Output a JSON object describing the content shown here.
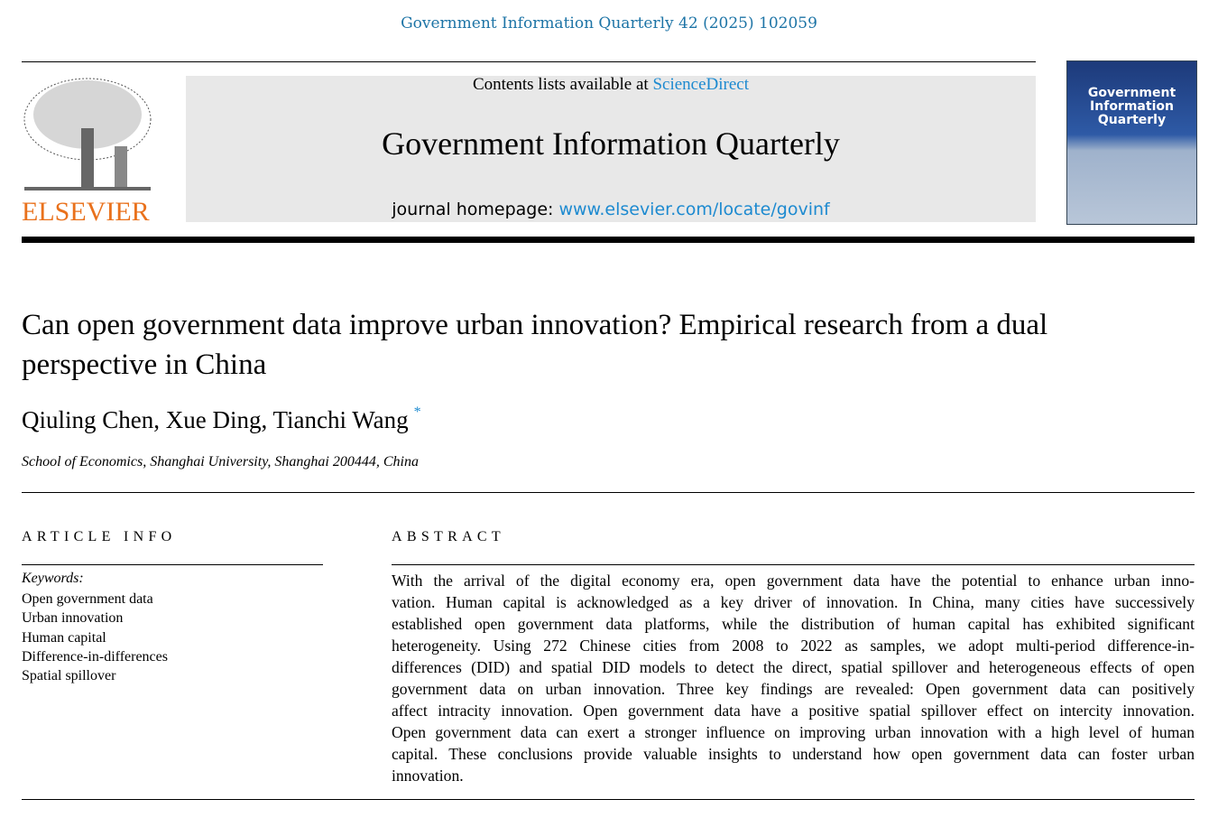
{
  "journal_reference": "Government Information Quarterly 42 (2025) 102059",
  "masthead": {
    "contents_prefix": "Contents lists available at ",
    "contents_link": "ScienceDirect",
    "journal_title": "Government Information Quarterly",
    "homepage_prefix": "journal homepage: ",
    "homepage_link": "www.elsevier.com/locate/govinf",
    "publisher_logo_text": "ELSEVIER",
    "cover_title": "Government Information Quarterly",
    "publisher_color": "#e9711c",
    "link_color": "#1d8ad0"
  },
  "article": {
    "title": "Can open government data improve urban innovation? Empirical research from a dual perspective in China",
    "authors": [
      "Qiuling Chen",
      "Xue Ding",
      "Tianchi Wang"
    ],
    "corresponding_mark": "*",
    "affiliation": "School of Economics, Shanghai University, Shanghai 200444, China"
  },
  "article_info": {
    "heading": "ARTICLE INFO",
    "keywords_label": "Keywords:",
    "keywords": [
      "Open government data",
      "Urban innovation",
      "Human capital",
      "Difference-in-differences",
      "Spatial spillover"
    ]
  },
  "abstract": {
    "heading": "ABSTRACT",
    "lines": [
      "With the arrival of the digital economy era, open government data have the potential to enhance urban inno-",
      "vation. Human capital is acknowledged as a key driver of innovation. In China, many cities have successively",
      "established open government data platforms, while the distribution of human capital has exhibited significant",
      "heterogeneity. Using 272 Chinese cities from 2008 to 2022 as samples, we adopt multi-period difference-in-",
      "differences (DID) and spatial DID models to detect the direct, spatial spillover and heterogeneous effects of open",
      "government data on urban innovation. Three key findings are revealed: Open government data can positively",
      "affect intracity innovation. Open government data have a positive spatial spillover effect on intercity innovation.",
      "Open government data can exert a stronger influence on improving urban innovation with a high level of human",
      "capital. These conclusions provide valuable insights to understand how open government data can foster urban",
      "innovation."
    ]
  }
}
